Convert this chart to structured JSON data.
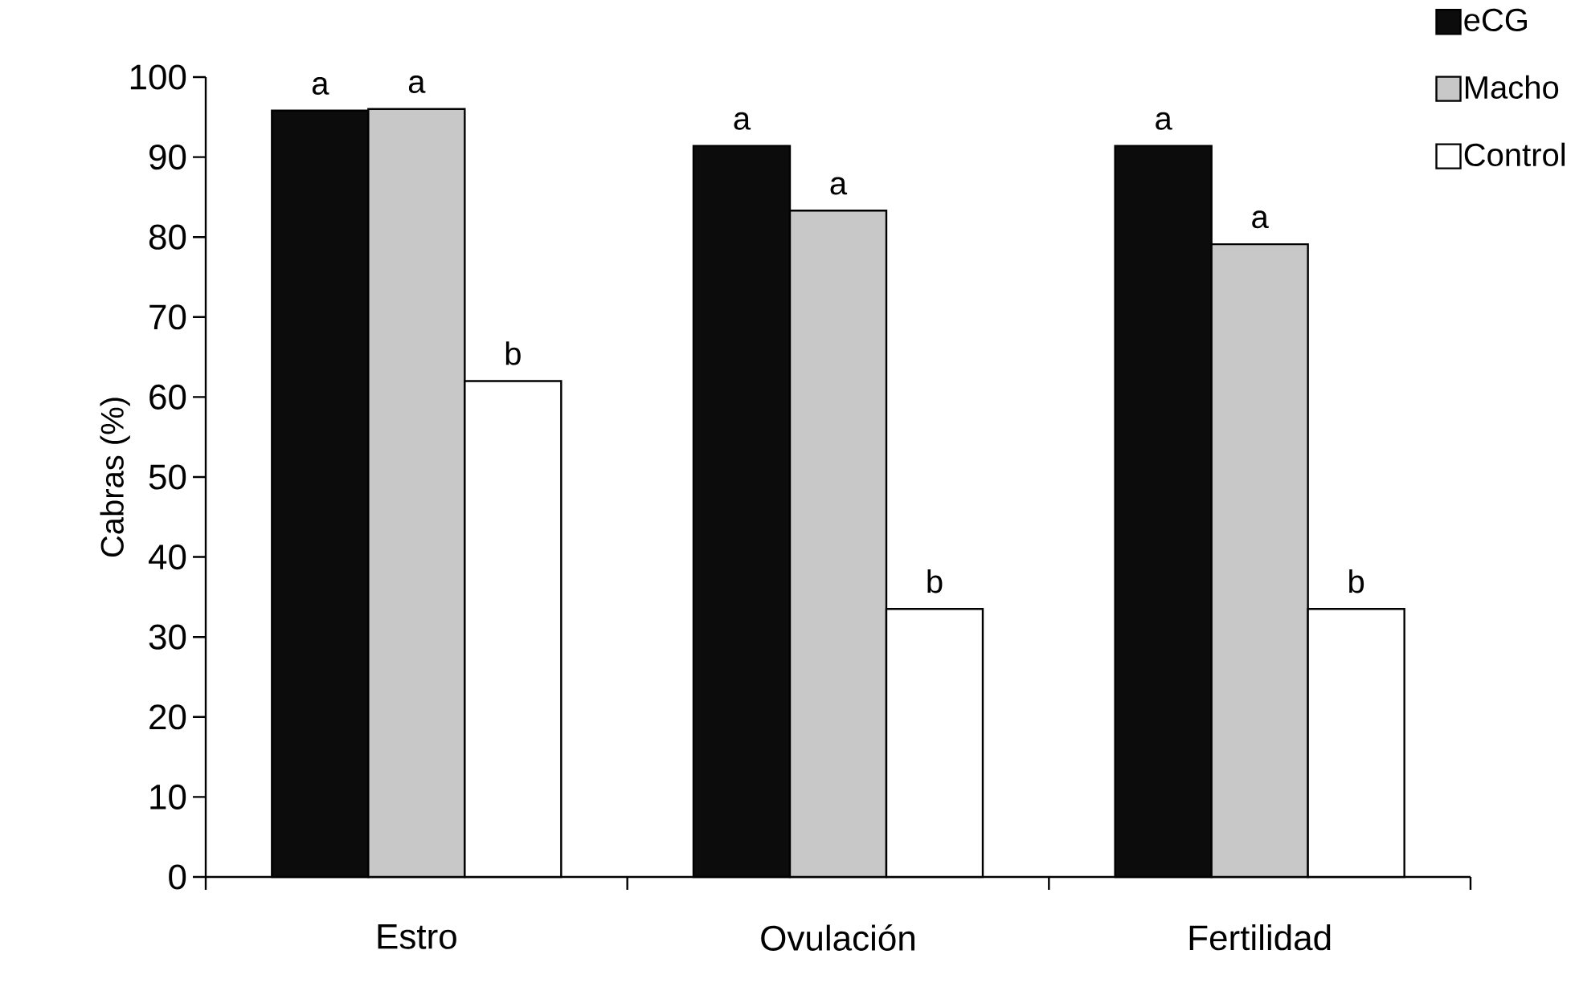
{
  "chart_data": {
    "type": "bar",
    "ylabel": "Cabras (%)",
    "categories": [
      "Estro",
      "Ovulación",
      "Fertilidad"
    ],
    "series": [
      {
        "name": "eCG",
        "color": "#0c0c0c",
        "values": [
          95.8,
          91.4,
          91.4
        ],
        "value_labels": [
          "a",
          "a",
          "a"
        ]
      },
      {
        "name": "Macho",
        "color": "#c8c8c8",
        "values": [
          96,
          83.3,
          79.1
        ],
        "value_labels": [
          "a",
          "a",
          "a"
        ]
      },
      {
        "name": "Control",
        "color": "#ffffff",
        "values": [
          62,
          33.5,
          33.5
        ],
        "value_labels": [
          "b",
          "b",
          "b"
        ]
      }
    ],
    "ylim": [
      0,
      100
    ],
    "yticks": [
      0,
      10,
      20,
      30,
      40,
      50,
      60,
      70,
      80,
      90,
      100
    ],
    "grid": false,
    "legend": "top right"
  }
}
